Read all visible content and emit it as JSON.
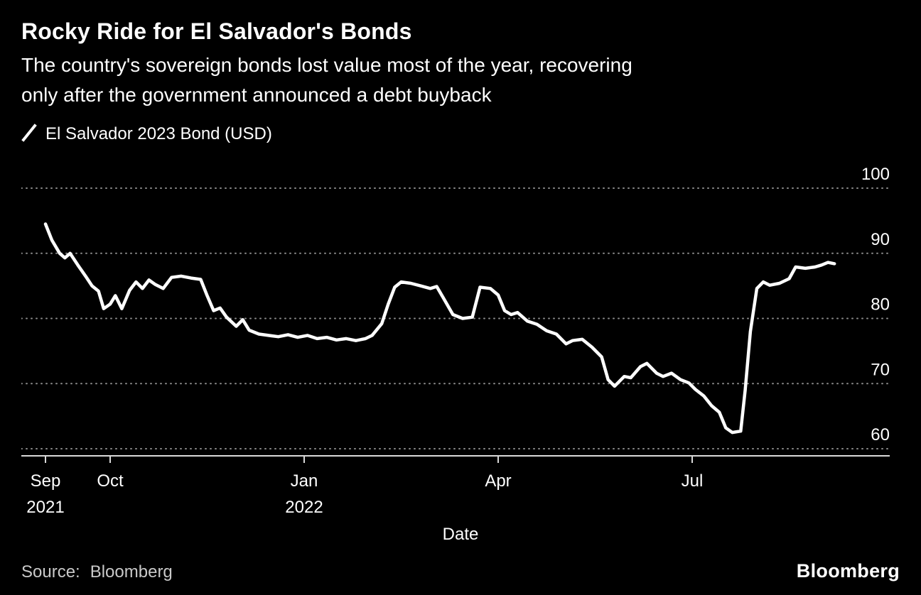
{
  "header": {
    "title": "Rocky Ride for El Salvador's Bonds",
    "subtitle": "The country's sovereign bonds lost value most of the year, recovering\nonly after the government announced a debt buyback"
  },
  "legend": {
    "label": "El Salvador 2023 Bond (USD)"
  },
  "footer": {
    "source_prefix": "Source:",
    "source_value": "Bloomberg",
    "brand": "Bloomberg"
  },
  "chart_data": {
    "type": "line",
    "title": "Rocky Ride for El Salvador's Bonds",
    "xlabel": "Date",
    "ylabel": "",
    "x_unit": "months_since_sep_2021",
    "xlim": [
      0,
      12.5
    ],
    "ylim": [
      58.5,
      101.5
    ],
    "grid": "horizontal-dotted",
    "legend_position": "top-left",
    "yticks": [
      60,
      70,
      80,
      90,
      100
    ],
    "xticks": [
      {
        "pos": 0,
        "label": "Sep",
        "sub": "2021"
      },
      {
        "pos": 1,
        "label": "Oct"
      },
      {
        "pos": 4,
        "label": "Jan",
        "sub": "2022"
      },
      {
        "pos": 7,
        "label": "Apr"
      },
      {
        "pos": 10,
        "label": "Jul"
      }
    ],
    "series": [
      {
        "name": "El Salvador 2023 Bond (USD)",
        "color": "#ffffff",
        "points": [
          [
            0.0,
            94.5
          ],
          [
            0.1,
            92.0
          ],
          [
            0.22,
            90.0
          ],
          [
            0.3,
            89.3
          ],
          [
            0.38,
            90.0
          ],
          [
            0.5,
            88.2
          ],
          [
            0.62,
            86.5
          ],
          [
            0.72,
            85.0
          ],
          [
            0.82,
            84.2
          ],
          [
            0.9,
            81.5
          ],
          [
            1.0,
            82.2
          ],
          [
            1.08,
            83.5
          ],
          [
            1.18,
            81.5
          ],
          [
            1.3,
            84.3
          ],
          [
            1.4,
            85.6
          ],
          [
            1.5,
            84.6
          ],
          [
            1.6,
            85.9
          ],
          [
            1.7,
            85.2
          ],
          [
            1.82,
            84.6
          ],
          [
            1.95,
            86.3
          ],
          [
            2.1,
            86.5
          ],
          [
            2.25,
            86.2
          ],
          [
            2.4,
            86.0
          ],
          [
            2.5,
            83.5
          ],
          [
            2.6,
            81.2
          ],
          [
            2.7,
            81.6
          ],
          [
            2.8,
            80.2
          ],
          [
            2.95,
            78.8
          ],
          [
            3.05,
            79.8
          ],
          [
            3.15,
            78.2
          ],
          [
            3.3,
            77.6
          ],
          [
            3.45,
            77.4
          ],
          [
            3.6,
            77.2
          ],
          [
            3.75,
            77.5
          ],
          [
            3.9,
            77.1
          ],
          [
            4.05,
            77.4
          ],
          [
            4.2,
            76.9
          ],
          [
            4.35,
            77.1
          ],
          [
            4.5,
            76.7
          ],
          [
            4.65,
            76.9
          ],
          [
            4.8,
            76.6
          ],
          [
            4.95,
            76.9
          ],
          [
            5.05,
            77.4
          ],
          [
            5.2,
            79.2
          ],
          [
            5.3,
            82.2
          ],
          [
            5.4,
            84.8
          ],
          [
            5.5,
            85.6
          ],
          [
            5.65,
            85.4
          ],
          [
            5.8,
            85.0
          ],
          [
            5.95,
            84.6
          ],
          [
            6.05,
            84.9
          ],
          [
            6.15,
            83.2
          ],
          [
            6.3,
            80.6
          ],
          [
            6.45,
            80.0
          ],
          [
            6.6,
            80.2
          ],
          [
            6.72,
            84.8
          ],
          [
            6.88,
            84.6
          ],
          [
            7.0,
            83.6
          ],
          [
            7.1,
            81.2
          ],
          [
            7.2,
            80.6
          ],
          [
            7.3,
            80.9
          ],
          [
            7.45,
            79.6
          ],
          [
            7.6,
            79.1
          ],
          [
            7.75,
            78.1
          ],
          [
            7.9,
            77.6
          ],
          [
            8.05,
            76.1
          ],
          [
            8.15,
            76.6
          ],
          [
            8.3,
            76.8
          ],
          [
            8.45,
            75.6
          ],
          [
            8.6,
            74.1
          ],
          [
            8.7,
            70.6
          ],
          [
            8.8,
            69.6
          ],
          [
            8.95,
            71.1
          ],
          [
            9.05,
            70.9
          ],
          [
            9.2,
            72.6
          ],
          [
            9.3,
            73.1
          ],
          [
            9.45,
            71.6
          ],
          [
            9.55,
            71.1
          ],
          [
            9.68,
            71.6
          ],
          [
            9.82,
            70.6
          ],
          [
            9.95,
            70.1
          ],
          [
            10.05,
            69.1
          ],
          [
            10.18,
            68.1
          ],
          [
            10.3,
            66.6
          ],
          [
            10.42,
            65.6
          ],
          [
            10.52,
            63.2
          ],
          [
            10.62,
            62.5
          ],
          [
            10.75,
            62.7
          ],
          [
            10.82,
            69.0
          ],
          [
            10.9,
            78.0
          ],
          [
            11.0,
            84.6
          ],
          [
            11.1,
            85.6
          ],
          [
            11.2,
            85.1
          ],
          [
            11.35,
            85.4
          ],
          [
            11.5,
            86.1
          ],
          [
            11.6,
            87.9
          ],
          [
            11.75,
            87.7
          ],
          [
            11.9,
            87.9
          ],
          [
            12.0,
            88.2
          ],
          [
            12.1,
            88.6
          ],
          [
            12.2,
            88.4
          ]
        ]
      }
    ]
  }
}
